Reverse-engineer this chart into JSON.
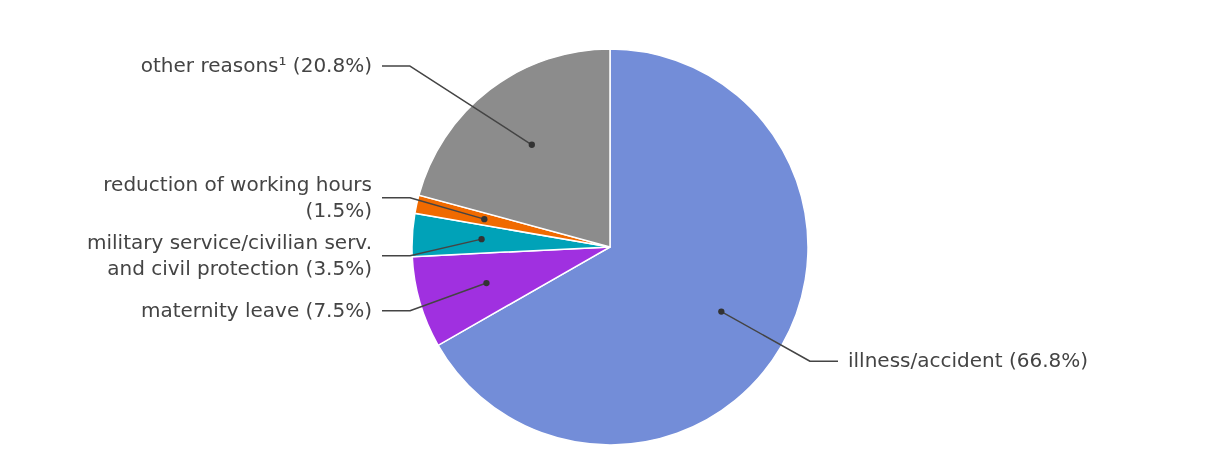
{
  "chart_data": {
    "type": "pie",
    "categories": [
      "illness/accident (66.8%)",
      "maternity leave (7.5%)",
      "military service/civilian serv.\nand civil protection (3.5%)",
      "reduction of working hours\n(1.5%)",
      "other reasons¹ (20.8%)"
    ],
    "values": [
      66.8,
      7.5,
      3.5,
      1.5,
      20.8
    ],
    "colors": [
      "#738dd8",
      "#a030e0",
      "#00a2b8",
      "#f06a00",
      "#8c8c8c"
    ]
  }
}
